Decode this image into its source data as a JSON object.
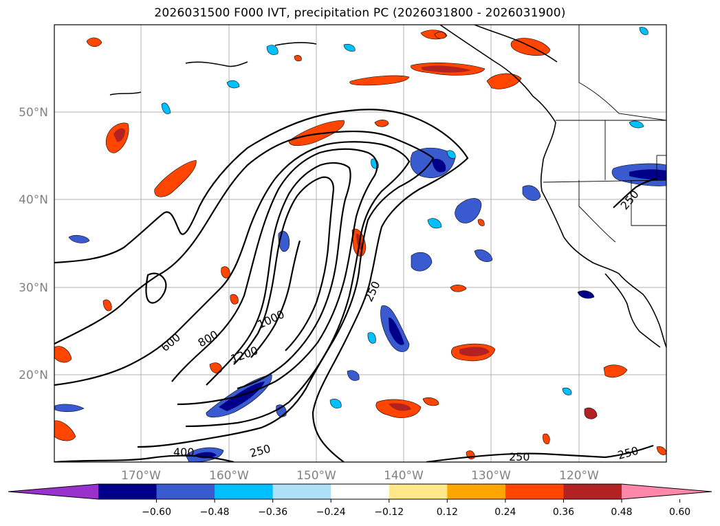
{
  "title": "2026031500 F000 IVT, precipitation PC (2026031800 - 2026031900)",
  "map": {
    "lat_labels": [
      "50°N",
      "40°N",
      "30°N",
      "20°N"
    ],
    "lon_labels": [
      "170°W",
      "160°W",
      "150°W",
      "140°W",
      "130°W",
      "120°W"
    ],
    "grid": true,
    "ivt_contour_labels": [
      "600",
      "800",
      "1000",
      "1200",
      "250",
      "400",
      "250",
      "250",
      "250",
      "250"
    ]
  },
  "colorbar": {
    "ticks": [
      "−0.60",
      "−0.48",
      "−0.36",
      "−0.24",
      "−0.12",
      "0.12",
      "0.24",
      "0.36",
      "0.48",
      "0.60"
    ],
    "colors": [
      "#9932cc",
      "#00008b",
      "#3a5bd0",
      "#00bfff",
      "#b0e0f8",
      "#ffffff",
      "#ffe88a",
      "#ffa500",
      "#ff4500",
      "#b22222",
      "#ff88aa"
    ],
    "extend": "both"
  }
}
